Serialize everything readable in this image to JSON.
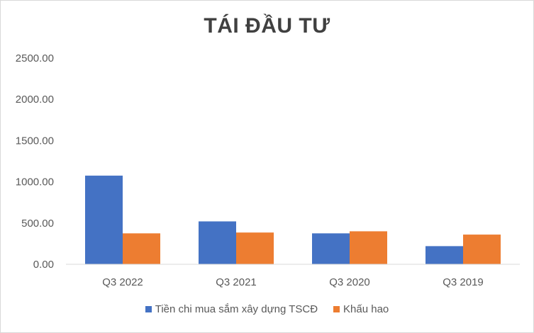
{
  "chart_data": {
    "type": "bar",
    "title": "TÁI ĐẦU TƯ",
    "categories": [
      "Q3 2022",
      "Q3 2021",
      "Q3 2020",
      "Q3 2019"
    ],
    "series": [
      {
        "name": "Tiền chi mua sắm xây dựng TSCĐ",
        "color": "#4472C4",
        "values": [
          1075,
          520,
          375,
          220
        ]
      },
      {
        "name": "Khấu hao",
        "color": "#ED7D31",
        "values": [
          375,
          385,
          400,
          360
        ]
      }
    ],
    "ylim": [
      0,
      2500
    ],
    "yticks": [
      "0.00",
      "500.00",
      "1000.00",
      "1500.00",
      "2000.00",
      "2500.00"
    ],
    "ytick_values": [
      0,
      500,
      1000,
      1500,
      2000,
      2500
    ],
    "grid": false,
    "legend_position": "bottom"
  }
}
